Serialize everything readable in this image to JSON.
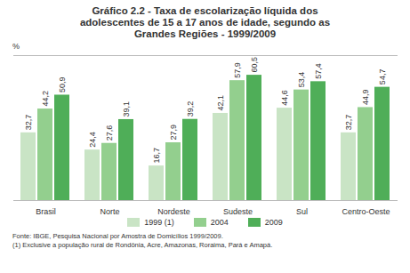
{
  "chart_data": {
    "type": "bar",
    "title": "Gráfico 2.2 - Taxa de escolarização líquida dos adolescentes de 15 a 17 anos de idade, segundo as Grandes Regiões - 1999/2009",
    "ylabel": "%",
    "categories": [
      "Brasil",
      "Norte",
      "Nordeste",
      "Sudeste",
      "Sul",
      "Centro-Oeste"
    ],
    "series": [
      {
        "name": "1999 (1)",
        "color": "#c9e4c5",
        "values": [
          32.7,
          24.4,
          16.7,
          42.1,
          44.6,
          32.7
        ],
        "value_labels": [
          "32,7",
          "24,4",
          "16,7",
          "42,1",
          "44,6",
          "32,7"
        ]
      },
      {
        "name": "2004",
        "color": "#93cf8e",
        "values": [
          44.2,
          27.6,
          27.9,
          57.9,
          53.4,
          44.9
        ],
        "value_labels": [
          "44,2",
          "27,6",
          "27,9",
          "57,9",
          "53,4",
          "44,9"
        ]
      },
      {
        "name": "2009",
        "color": "#4fae58",
        "values": [
          50.9,
          39.1,
          39.2,
          60.5,
          57.4,
          54.7
        ],
        "value_labels": [
          "50,9",
          "39,1",
          "39,2",
          "60,5",
          "57,4",
          "54,7"
        ]
      }
    ],
    "ylim": [
      0,
      70
    ],
    "tick_labels": "x",
    "data_labels": true,
    "legend": "bottom",
    "notes": [
      "Fonte: IBGE, Pesquisa Nacional por Amostra de Domicílios 1999/2009.",
      "(1) Exclusive a população rural de Rondônia, Acre, Amazonas, Roraima, Pará e Amapá."
    ]
  }
}
